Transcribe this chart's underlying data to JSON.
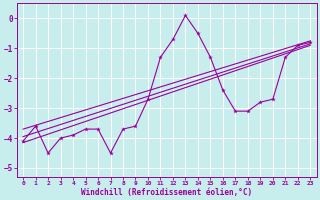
{
  "xlabel": "Windchill (Refroidissement éolien,°C)",
  "xlim": [
    -0.5,
    23.5
  ],
  "ylim": [
    -5.3,
    0.5
  ],
  "yticks": [
    0,
    -1,
    -2,
    -3,
    -4,
    -5
  ],
  "xticks": [
    0,
    1,
    2,
    3,
    4,
    5,
    6,
    7,
    8,
    9,
    10,
    11,
    12,
    13,
    14,
    15,
    16,
    17,
    18,
    19,
    20,
    21,
    22,
    23
  ],
  "bg_color": "#c8eded",
  "grid_color": "#b0d8d8",
  "line_color": "#990099",
  "zigzag": {
    "x": [
      0,
      1,
      2,
      3,
      4,
      5,
      6,
      7,
      8,
      9,
      10,
      11,
      12,
      13,
      14,
      15,
      16,
      17,
      18,
      19,
      20,
      21,
      22,
      23
    ],
    "y": [
      -4.1,
      -3.6,
      -4.5,
      -4.0,
      -3.9,
      -3.7,
      -3.7,
      -4.5,
      -3.7,
      -3.6,
      -2.7,
      -1.3,
      -0.7,
      0.1,
      -0.5,
      -1.3,
      -2.4,
      -3.1,
      -3.1,
      -2.8,
      -2.7,
      -1.3,
      -0.9,
      -0.8
    ]
  },
  "line1": {
    "x": [
      0,
      23
    ],
    "y": [
      -3.7,
      -0.75
    ]
  },
  "line2": {
    "x": [
      0,
      23
    ],
    "y": [
      -3.95,
      -0.85
    ]
  },
  "line3": {
    "x": [
      0,
      23
    ],
    "y": [
      -4.15,
      -0.9
    ]
  }
}
